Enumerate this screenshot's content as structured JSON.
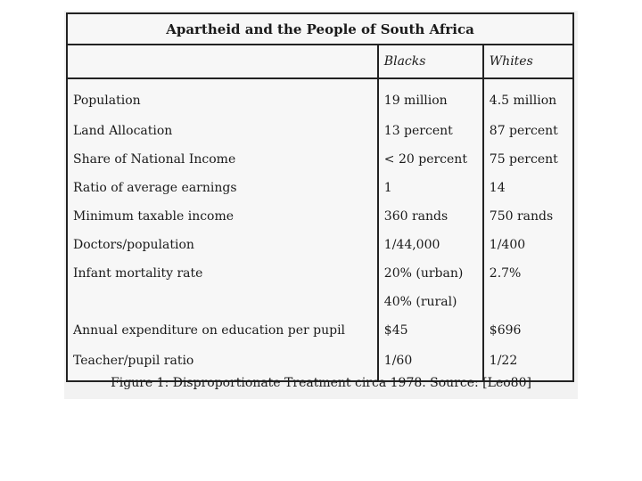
{
  "table": {
    "title": "Apartheid and the People of South Africa",
    "columns": [
      "",
      "Blacks",
      "Whites"
    ],
    "rows": [
      {
        "label": "Population",
        "blacks": "19 million",
        "whites": "4.5 million"
      },
      {
        "label": "Land Allocation",
        "blacks": "13 percent",
        "whites": "87 percent"
      },
      {
        "label": "Share of National Income",
        "blacks": "< 20 percent",
        "whites": "75 percent"
      },
      {
        "label": "Ratio of average earnings",
        "blacks": "1",
        "whites": "14"
      },
      {
        "label": "Minimum taxable income",
        "blacks": "360 rands",
        "whites": "750 rands"
      },
      {
        "label": "Doctors/population",
        "blacks": "1/44,000",
        "whites": "1/400"
      },
      {
        "label": "Infant mortality rate",
        "blacks": "20% (urban)",
        "whites": "2.7%"
      },
      {
        "label": "",
        "blacks": "40% (rural)",
        "whites": ""
      },
      {
        "label": "Annual expenditure on education per pupil",
        "blacks": "$45",
        "whites": "$696"
      },
      {
        "label": "Teacher/pupil ratio",
        "blacks": "1/60",
        "whites": "1/22"
      }
    ]
  },
  "caption": "Figure 1: Disproportionate Treatment circa 1978. Source: [Leo80]"
}
